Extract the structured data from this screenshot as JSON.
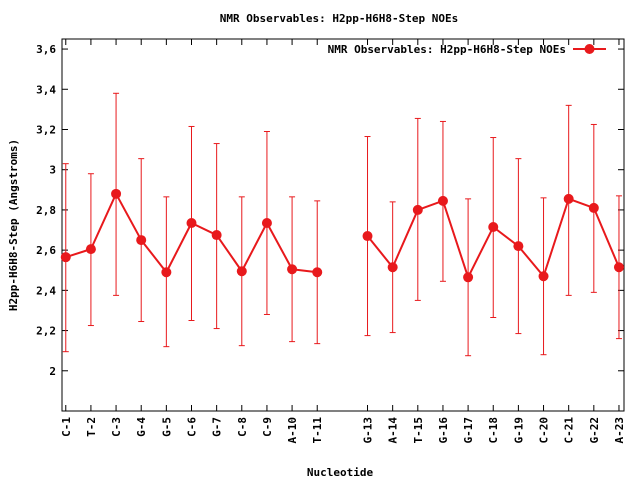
{
  "chart_data": {
    "type": "line",
    "title": "NMR Observables: H2pp-H6H8-Step NOEs",
    "xlabel": "Nucleotide",
    "ylabel": "H2pp-H6H8-Step (Angstroms)",
    "ylim": [
      1.8,
      3.65
    ],
    "yticks": [
      2,
      2.2,
      2.4,
      2.6,
      2.8,
      3,
      3.2,
      3.4,
      3.6
    ],
    "ytick_labels": [
      "2",
      "2,2",
      "2,4",
      "2,6",
      "2,8",
      "3",
      "3,2",
      "3,4",
      "3,6"
    ],
    "x_positions": [
      1,
      2,
      3,
      4,
      5,
      6,
      7,
      8,
      9,
      10,
      11,
      13,
      14,
      15,
      16,
      17,
      18,
      19,
      20,
      21,
      22,
      23
    ],
    "xlim": [
      0.85,
      23.2
    ],
    "categories": [
      "C-1",
      "T-2",
      "C-3",
      "G-4",
      "G-5",
      "C-6",
      "G-7",
      "C-8",
      "C-9",
      "A-10",
      "T-11",
      "G-13",
      "A-14",
      "T-15",
      "G-16",
      "G-17",
      "C-18",
      "G-19",
      "C-20",
      "C-21",
      "G-22",
      "A-23"
    ],
    "legend_position": "top-right",
    "grid": false,
    "series": [
      {
        "name": "NMR Observables: H2pp-H6H8-Step NOEs",
        "color": "#e8191c",
        "values": [
          2.565,
          2.605,
          2.88,
          2.65,
          2.49,
          2.735,
          2.675,
          2.495,
          2.735,
          2.505,
          2.49,
          2.67,
          2.515,
          2.8,
          2.845,
          2.465,
          2.715,
          2.62,
          2.47,
          2.855,
          2.81,
          2.515
        ],
        "err_low": [
          2.095,
          2.225,
          2.375,
          2.245,
          2.12,
          2.25,
          2.21,
          2.125,
          2.28,
          2.145,
          2.135,
          2.175,
          2.19,
          2.35,
          2.445,
          2.075,
          2.265,
          2.185,
          2.08,
          2.375,
          2.39,
          2.16
        ],
        "err_high": [
          3.03,
          2.98,
          3.38,
          3.055,
          2.865,
          3.215,
          3.13,
          2.865,
          3.19,
          2.865,
          2.845,
          3.165,
          2.84,
          3.255,
          3.24,
          2.855,
          3.16,
          3.055,
          2.86,
          3.32,
          3.225,
          2.87
        ]
      }
    ]
  }
}
